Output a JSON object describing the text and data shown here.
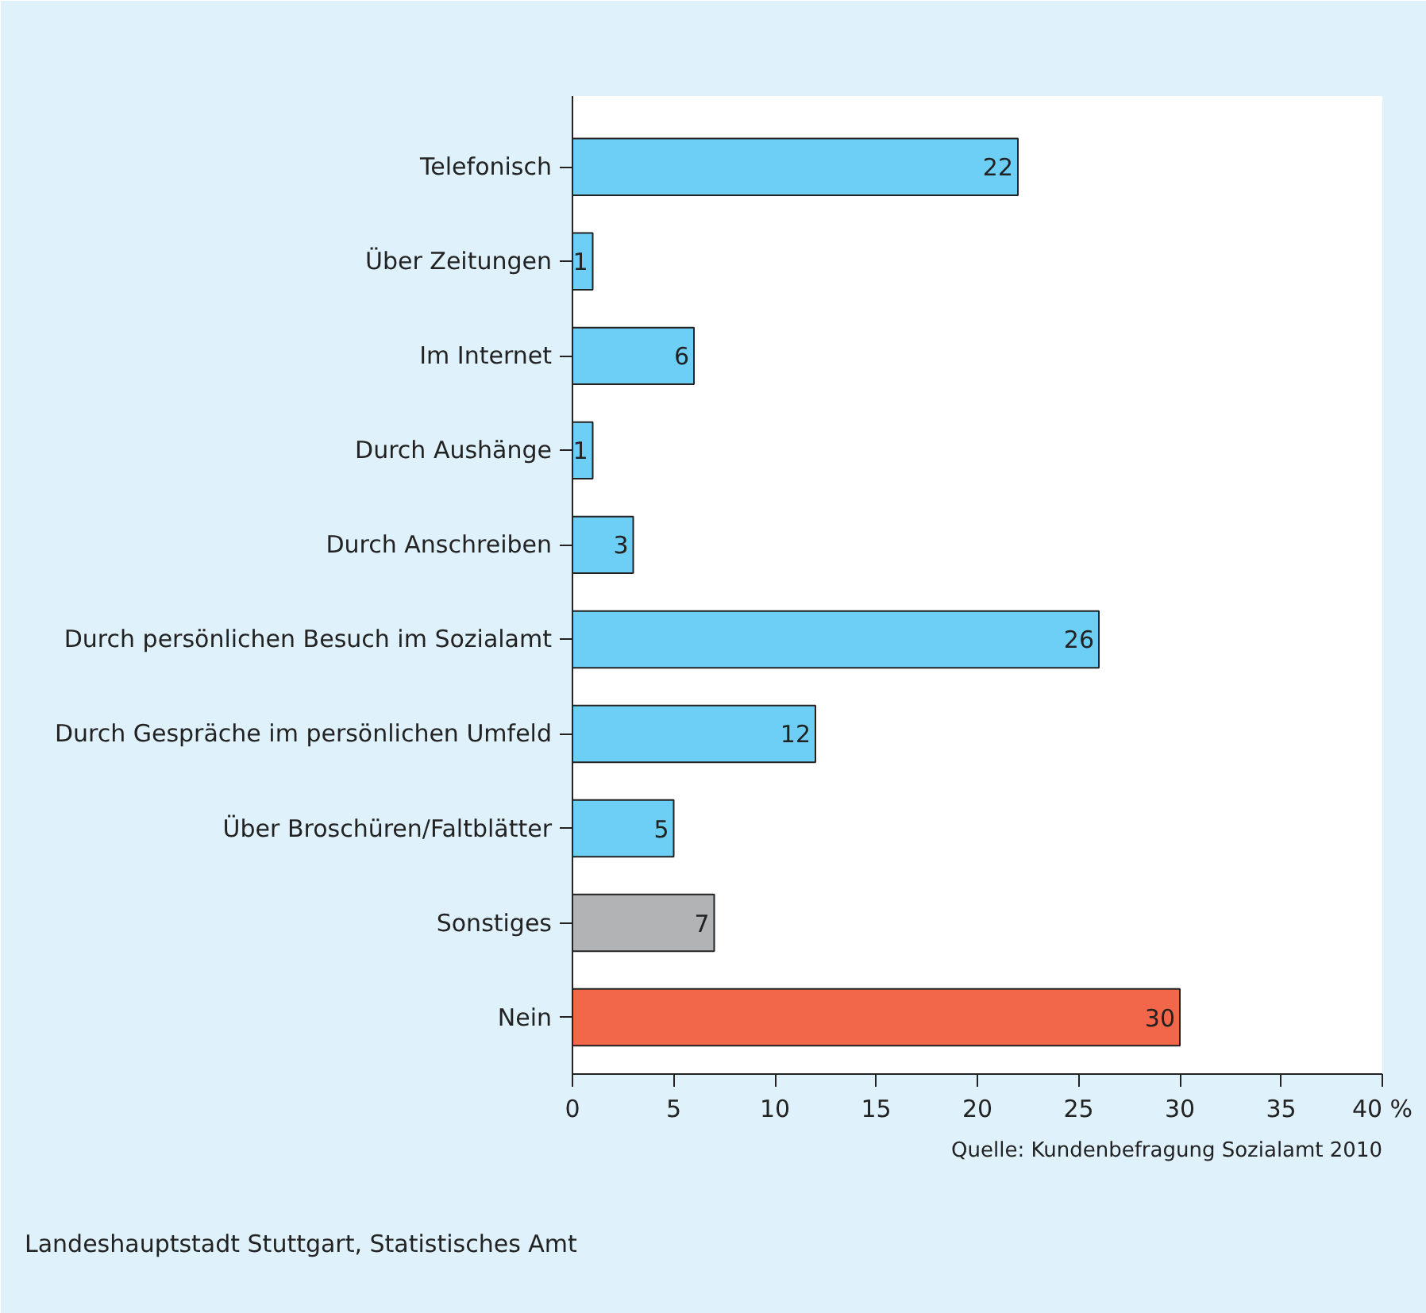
{
  "chart_data": {
    "type": "bar",
    "orientation": "horizontal",
    "categories": [
      "Telefonisch",
      "Über Zeitungen",
      "Im Internet",
      "Durch Aushänge",
      "Durch Anschreiben",
      "Durch persönlichen Besuch im Sozialamt",
      "Durch Gespräche im persönlichen Umfeld",
      "Über Broschüren/Faltblätter",
      "Sonstiges",
      "Nein"
    ],
    "values": [
      22,
      1,
      6,
      1,
      3,
      26,
      12,
      5,
      7,
      30
    ],
    "colors": [
      "#6dcff6",
      "#6dcff6",
      "#6dcff6",
      "#6dcff6",
      "#6dcff6",
      "#6dcff6",
      "#6dcff6",
      "#6dcff6",
      "#b1b3b4",
      "#f26649"
    ],
    "xlim": [
      0,
      40
    ],
    "xticks": [
      0,
      5,
      10,
      15,
      20,
      25,
      30,
      35,
      {
        "value": 40,
        "label": "40 %"
      }
    ],
    "data_labels": true,
    "grid": false,
    "annotations": [
      "Quelle: Kundenbefragung Sozialamt 2010",
      "Landeshauptstadt Stuttgart, Statistisches Amt"
    ]
  }
}
